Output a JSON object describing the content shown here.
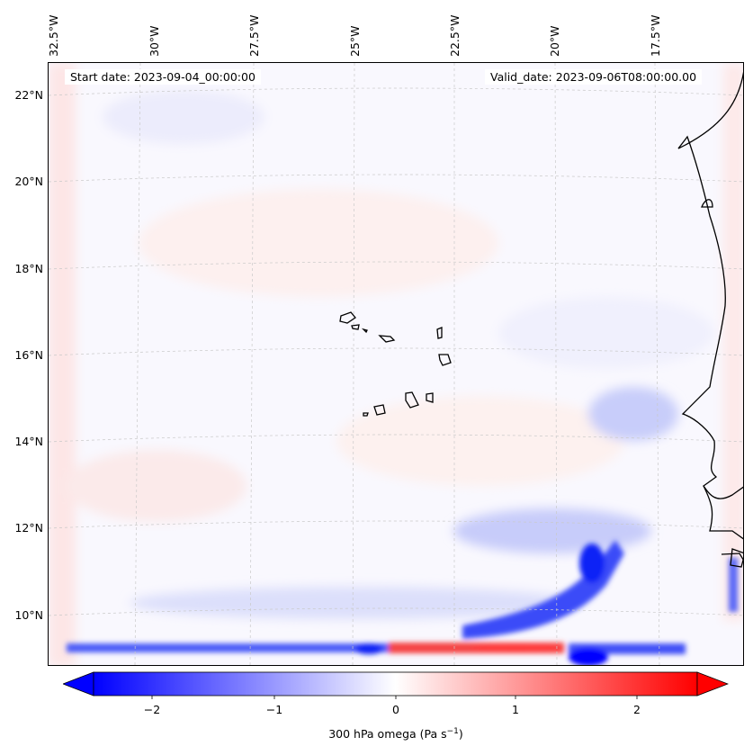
{
  "map": {
    "start_date": "Start date: 2023-09-04_00:00:00",
    "valid_date": "Valid_date: 2023-09-06T08:00:00.00",
    "lon_labels": [
      "32.5°W",
      "30°W",
      "27.5°W",
      "25°W",
      "22.5°W",
      "20°W",
      "17.5°W"
    ],
    "lat_labels": [
      "22°N",
      "20°N",
      "18°N",
      "16°N",
      "14°N",
      "12°N",
      "10°N"
    ],
    "coastline_color": "#000000",
    "gridline_color": "#c8c8c8"
  },
  "colorbar": {
    "ticks": [
      "−2",
      "−1",
      "0",
      "1",
      "2"
    ],
    "tick_values": [
      -2,
      -1,
      0,
      1,
      2
    ],
    "range": [
      -2.6,
      2.6
    ],
    "cmap": "bwr",
    "extend": "both",
    "title_main": "300 hPa omega (Pa s",
    "title_exp": "−1",
    "title_end": ")",
    "colors": {
      "neg": "#0000ff",
      "zero": "#ffffff",
      "pos": "#ff0000"
    }
  }
}
